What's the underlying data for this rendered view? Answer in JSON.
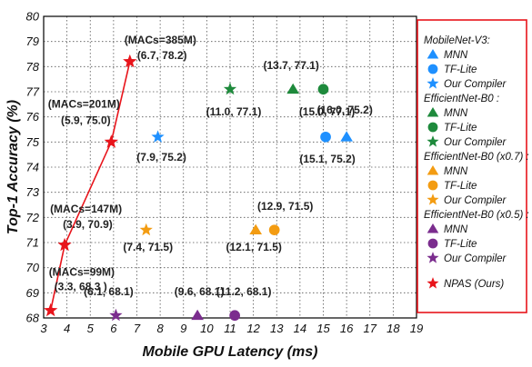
{
  "chart_data": {
    "type": "scatter",
    "xlabel": "Mobile GPU Latency (ms)",
    "ylabel": "Top-1 Accuracy (%)",
    "xlim": [
      3,
      19
    ],
    "ylim": [
      68,
      80
    ],
    "x_ticks": [
      3,
      4,
      5,
      6,
      7,
      8,
      9,
      10,
      11,
      12,
      13,
      14,
      15,
      16,
      17,
      18,
      19
    ],
    "y_ticks": [
      68,
      69,
      70,
      71,
      72,
      73,
      74,
      75,
      76,
      77,
      78,
      79,
      80
    ],
    "grid": true,
    "grid_style": "dotted",
    "legend_position": "right",
    "legend_groups": [
      {
        "title": "MobileNet-V3:",
        "items": [
          {
            "label": "MNN",
            "marker": "triangle",
            "color": "#1E90FF"
          },
          {
            "label": "TF-Lite",
            "marker": "circle",
            "color": "#1E90FF"
          },
          {
            "label": "Our Compiler",
            "marker": "star",
            "color": "#1E90FF"
          }
        ]
      },
      {
        "title": "EfficientNet-B0 :",
        "items": [
          {
            "label": "MNN",
            "marker": "triangle",
            "color": "#1E8A3C"
          },
          {
            "label": "TF-Lite",
            "marker": "circle",
            "color": "#1E8A3C"
          },
          {
            "label": "Our Compiler",
            "marker": "star",
            "color": "#1E8A3C"
          }
        ]
      },
      {
        "title": "EfficientNet-B0 (x0.7) :",
        "items": [
          {
            "label": "MNN",
            "marker": "triangle",
            "color": "#F39C12"
          },
          {
            "label": "TF-Lite",
            "marker": "circle",
            "color": "#F39C12"
          },
          {
            "label": "Our Compiler",
            "marker": "star",
            "color": "#F39C12"
          }
        ]
      },
      {
        "title": "EfficientNet-B0 (x0.5) :",
        "items": [
          {
            "label": "MNN",
            "marker": "triangle",
            "color": "#7B2D8E"
          },
          {
            "label": "TF-Lite",
            "marker": "circle",
            "color": "#7B2D8E"
          },
          {
            "label": "Our Compiler",
            "marker": "star",
            "color": "#7B2D8E"
          }
        ]
      },
      {
        "title": "",
        "items": [
          {
            "label": "NPAS (Ours)",
            "marker": "star",
            "color": "#E8141B"
          }
        ]
      }
    ],
    "legend_border_color": "#E8141B",
    "series": [
      {
        "name": "MobileNet-V3: MNN",
        "marker": "triangle",
        "color": "#1E90FF",
        "points": [
          [
            16.0,
            75.2
          ]
        ]
      },
      {
        "name": "MobileNet-V3: TF-Lite",
        "marker": "circle",
        "color": "#1E90FF",
        "points": [
          [
            15.1,
            75.2
          ]
        ]
      },
      {
        "name": "MobileNet-V3: Our Compiler",
        "marker": "star",
        "color": "#1E90FF",
        "points": [
          [
            7.9,
            75.2
          ]
        ]
      },
      {
        "name": "EfficientNet-B0: MNN",
        "marker": "triangle",
        "color": "#1E8A3C",
        "points": [
          [
            13.7,
            77.1
          ]
        ]
      },
      {
        "name": "EfficientNet-B0: TF-Lite",
        "marker": "circle",
        "color": "#1E8A3C",
        "points": [
          [
            15.0,
            77.1
          ]
        ]
      },
      {
        "name": "EfficientNet-B0: Our Compiler",
        "marker": "star",
        "color": "#1E8A3C",
        "points": [
          [
            11.0,
            77.1
          ]
        ]
      },
      {
        "name": "EfficientNet-B0 (x0.7): MNN",
        "marker": "triangle",
        "color": "#F39C12",
        "points": [
          [
            12.1,
            71.5
          ]
        ]
      },
      {
        "name": "EfficientNet-B0 (x0.7): TF-Lite",
        "marker": "circle",
        "color": "#F39C12",
        "points": [
          [
            12.9,
            71.5
          ]
        ]
      },
      {
        "name": "EfficientNet-B0 (x0.7): Our Compiler",
        "marker": "star",
        "color": "#F39C12",
        "points": [
          [
            7.4,
            71.5
          ]
        ]
      },
      {
        "name": "EfficientNet-B0 (x0.5): MNN",
        "marker": "triangle",
        "color": "#7B2D8E",
        "points": [
          [
            9.6,
            68.1
          ]
        ]
      },
      {
        "name": "EfficientNet-B0 (x0.5): TF-Lite",
        "marker": "circle",
        "color": "#7B2D8E",
        "points": [
          [
            11.2,
            68.1
          ]
        ]
      },
      {
        "name": "EfficientNet-B0 (x0.5): Our Compiler",
        "marker": "star",
        "color": "#7B2D8E",
        "points": [
          [
            6.1,
            68.1
          ]
        ]
      },
      {
        "name": "NPAS (Ours)",
        "marker": "star",
        "color": "#E8141B",
        "connected": true,
        "points": [
          [
            3.3,
            68.3
          ],
          [
            3.9,
            70.9
          ],
          [
            5.9,
            75.0
          ],
          [
            6.7,
            78.2
          ]
        ]
      }
    ],
    "annotations": [
      {
        "text": "(MACs=385M)",
        "x": 6.7,
        "y": 78.2,
        "anchor": "start",
        "dx": -6,
        "dy": -20
      },
      {
        "text": "(6.7, 78.2)",
        "x": 6.7,
        "y": 78.2,
        "anchor": "start",
        "dx": 8,
        "dy": -3
      },
      {
        "text": "(MACs=201M)",
        "x": 5.9,
        "y": 75.0,
        "anchor": "middle",
        "dx": -30,
        "dy": -38
      },
      {
        "text": "(5.9, 75.0)",
        "x": 5.9,
        "y": 75.0,
        "anchor": "middle",
        "dx": -28,
        "dy": -20
      },
      {
        "text": "(MACs=147M)",
        "x": 3.9,
        "y": 70.9,
        "anchor": "start",
        "dx": -16,
        "dy": -36
      },
      {
        "text": "(3.9, 70.9)",
        "x": 3.9,
        "y": 70.9,
        "anchor": "start",
        "dx": -2,
        "dy": -19
      },
      {
        "text": "(MACs=99M)",
        "x": 3.3,
        "y": 68.3,
        "anchor": "start",
        "dx": -2,
        "dy": -38
      },
      {
        "text": "(3.3, 68.3 )",
        "x": 3.3,
        "y": 68.3,
        "anchor": "start",
        "dx": 4,
        "dy": -22
      },
      {
        "text": "(7.9, 75.2)",
        "x": 7.9,
        "y": 75.2,
        "anchor": "middle",
        "dx": 4,
        "dy": 26
      },
      {
        "text": "(16.0, 75.2)",
        "x": 16.0,
        "y": 75.2,
        "anchor": "middle",
        "dx": -2,
        "dy": -26
      },
      {
        "text": "(15.1, 75.2)",
        "x": 15.1,
        "y": 75.2,
        "anchor": "middle",
        "dx": 2,
        "dy": 28
      },
      {
        "text": "(13.7, 77.1)",
        "x": 13.7,
        "y": 77.1,
        "anchor": "middle",
        "dx": -2,
        "dy": -22
      },
      {
        "text": "(11.0, 77.1)",
        "x": 11.0,
        "y": 77.1,
        "anchor": "middle",
        "dx": 4,
        "dy": 29
      },
      {
        "text": "(15.0, 77.1)",
        "x": 15.0,
        "y": 77.1,
        "anchor": "middle",
        "dx": 4,
        "dy": 29
      },
      {
        "text": "(12.9, 71.5)",
        "x": 12.9,
        "y": 71.5,
        "anchor": "middle",
        "dx": 12,
        "dy": -22
      },
      {
        "text": "(7.4, 71.5)",
        "x": 7.4,
        "y": 71.5,
        "anchor": "middle",
        "dx": 2,
        "dy": 23
      },
      {
        "text": "(12.1, 71.5)",
        "x": 12.1,
        "y": 71.5,
        "anchor": "middle",
        "dx": -2,
        "dy": 23
      },
      {
        "text": "(6.1, 68.1)",
        "x": 6.1,
        "y": 68.1,
        "anchor": "middle",
        "dx": -8,
        "dy": -22
      },
      {
        "text": "(9.6, 68.1)",
        "x": 9.6,
        "y": 68.1,
        "anchor": "middle",
        "dx": 2,
        "dy": -22
      },
      {
        "text": "(11.2, 68.1)",
        "x": 11.2,
        "y": 68.1,
        "anchor": "middle",
        "dx": 10,
        "dy": -22
      }
    ]
  }
}
